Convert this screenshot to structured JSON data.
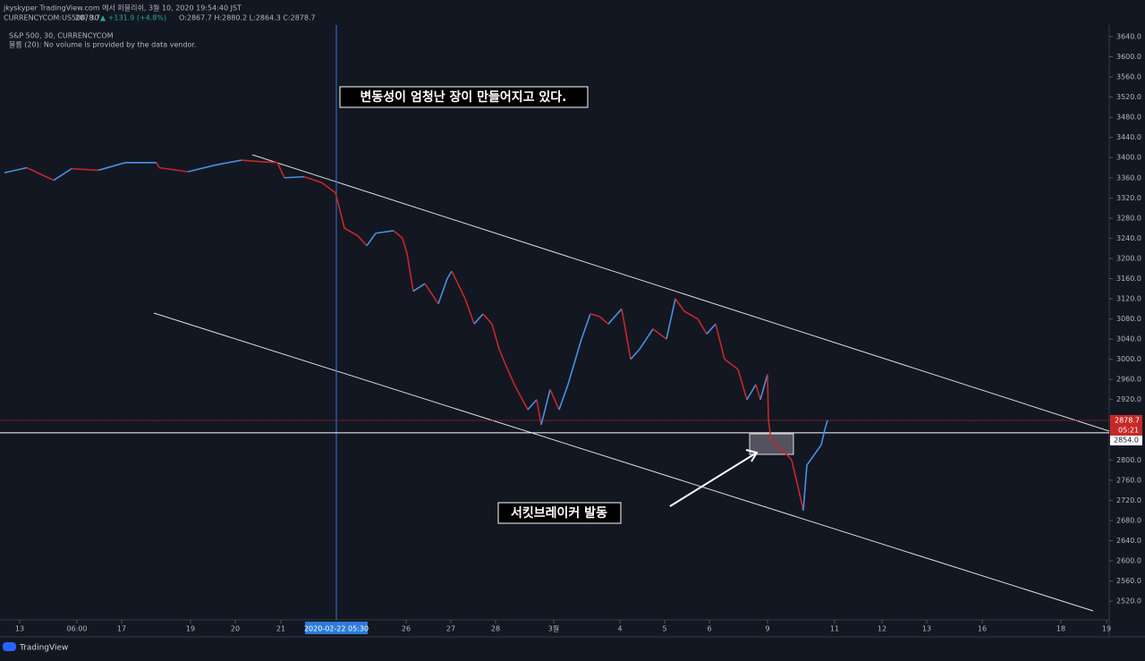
{
  "header": {
    "line1": "jkyskyper TradingView.com 에서 퍼블리쉬, 3월 10, 2020 19:54:40 JST",
    "symbol": "CURRENCYCOM:US500, 30",
    "last": "2878.7",
    "change": "▲ +131.9 (+4.8%)",
    "ohlc": "O:2867.7 H:2880.2 L:2864.3 C:2878.7"
  },
  "legend": {
    "series": "S&P 500, 30, CURRENCYCOM",
    "volume": "볼륨 (20): No volume is provided by the data vendor."
  },
  "annotations": {
    "top": "변동성이 엄청난 장이 만들어지고 있다.",
    "bottom": "서킷브레이커 발동"
  },
  "footer": "TradingView",
  "chart_data": {
    "type": "line",
    "x_axis": "30-minute bar",
    "xlim": [
      0,
      1240
    ],
    "xticks": [
      {
        "value": 22,
        "label": "13"
      },
      {
        "value": 86,
        "label": "06:00"
      },
      {
        "value": 136,
        "label": "17"
      },
      {
        "value": 213,
        "label": "19"
      },
      {
        "value": 263,
        "label": "20"
      },
      {
        "value": 314,
        "label": "21"
      },
      {
        "value": 454,
        "label": "26"
      },
      {
        "value": 504,
        "label": "27"
      },
      {
        "value": 554,
        "label": "28"
      },
      {
        "value": 619,
        "label": "3월"
      },
      {
        "value": 693,
        "label": "4"
      },
      {
        "value": 743,
        "label": "5"
      },
      {
        "value": 793,
        "label": "6"
      },
      {
        "value": 858,
        "label": "9"
      },
      {
        "value": 933,
        "label": "11"
      },
      {
        "value": 986,
        "label": "12"
      },
      {
        "value": 1036,
        "label": "13"
      },
      {
        "value": 1098,
        "label": "16"
      },
      {
        "value": 1186,
        "label": "18"
      },
      {
        "value": 1237,
        "label": "19"
      }
    ],
    "crosshair": {
      "value": 376,
      "label": "2020-02-22  05:30"
    },
    "ylim": [
      2483,
      3663
    ],
    "yticks": [
      {
        "value": 2520,
        "label": "2520.0"
      },
      {
        "value": 2560,
        "label": "2560.0"
      },
      {
        "value": 2600,
        "label": "2600.0"
      },
      {
        "value": 2640,
        "label": "2640.0"
      },
      {
        "value": 2680,
        "label": "2680.0"
      },
      {
        "value": 2720,
        "label": "2720.0"
      },
      {
        "value": 2760,
        "label": "2760.0"
      },
      {
        "value": 2800,
        "label": "2800.0"
      },
      {
        "value": 2840,
        "label": "2840.0"
      },
      {
        "value": 2880,
        "label": "2880.0"
      },
      {
        "value": 2920,
        "label": "2920.0"
      },
      {
        "value": 2960,
        "label": "2960.0"
      },
      {
        "value": 3000,
        "label": "3000.0"
      },
      {
        "value": 3040,
        "label": "3040.0"
      },
      {
        "value": 3080,
        "label": "3080.0"
      },
      {
        "value": 3120,
        "label": "3120.0"
      },
      {
        "value": 3160,
        "label": "3160.0"
      },
      {
        "value": 3200,
        "label": "3200.0"
      },
      {
        "value": 3240,
        "label": "3240.0"
      },
      {
        "value": 3280,
        "label": "3280.0"
      },
      {
        "value": 3320,
        "label": "3320.0"
      },
      {
        "value": 3360,
        "label": "3360.0"
      },
      {
        "value": 3400,
        "label": "3400.0"
      },
      {
        "value": 3440,
        "label": "3440.0"
      },
      {
        "value": 3480,
        "label": "3480.0"
      },
      {
        "value": 3520,
        "label": "3520.0"
      },
      {
        "value": 3560,
        "label": "3560.0"
      },
      {
        "value": 3600,
        "label": "3600.0"
      },
      {
        "value": 3640,
        "label": "3640.0"
      }
    ],
    "last_price": {
      "value": 2878.7,
      "label": "2878.7",
      "countdown": "05:21",
      "color": "#c62828"
    },
    "level": {
      "value": 2854,
      "label": "2854.0"
    },
    "up_color": "#4a90e2",
    "down_color": "#c62828",
    "series": [
      {
        "name": "S&P 500",
        "x": [
          5,
          30,
          60,
          80,
          110,
          140,
          175,
          178,
          210,
          240,
          270,
          290,
          310,
          318,
          340,
          360,
          375,
          378,
          385,
          400,
          410,
          420,
          440,
          450,
          455,
          462,
          475,
          490,
          500,
          505,
          520,
          530,
          540,
          550,
          558,
          565,
          575,
          590,
          600,
          605,
          615,
          625,
          635,
          650,
          660,
          670,
          680,
          690,
          695,
          705,
          715,
          730,
          745,
          755,
          765,
          780,
          790,
          800,
          810,
          825,
          835,
          845,
          850,
          858,
          859,
          862,
          870,
          880,
          885,
          893,
          898,
          902,
          910,
          918,
          922,
          925
        ],
        "values": [
          3370,
          3380,
          3355,
          3378,
          3375,
          3390,
          3390,
          3380,
          3372,
          3385,
          3395,
          3392,
          3390,
          3360,
          3362,
          3350,
          3330,
          3310,
          3260,
          3245,
          3225,
          3250,
          3255,
          3240,
          3210,
          3135,
          3150,
          3110,
          3160,
          3175,
          3120,
          3070,
          3090,
          3070,
          3020,
          2990,
          2950,
          2900,
          2920,
          2870,
          2940,
          2900,
          2950,
          3040,
          3090,
          3085,
          3070,
          3090,
          3100,
          3000,
          3020,
          3060,
          3040,
          3120,
          3095,
          3080,
          3050,
          3070,
          3000,
          2980,
          2920,
          2950,
          2920,
          2970,
          2880,
          2840,
          2825,
          2810,
          2800,
          2740,
          2700,
          2790,
          2810,
          2830,
          2860,
          2878.7
        ]
      }
    ]
  }
}
